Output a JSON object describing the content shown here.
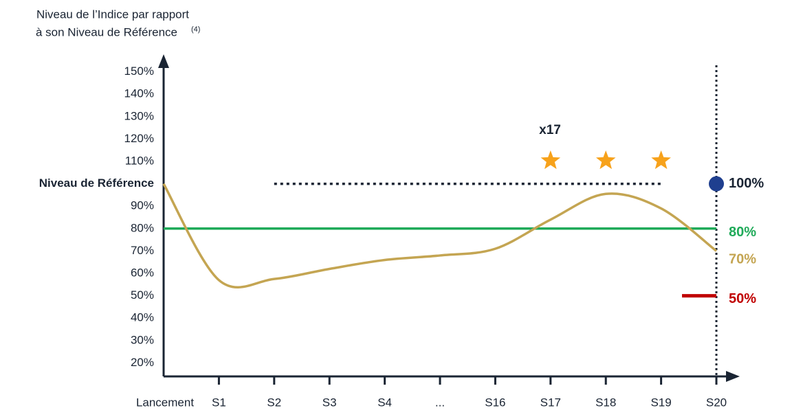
{
  "chart_data": {
    "type": "line",
    "y_label": [
      "Niveau de l’Indice par rapport",
      "à son Niveau de Référence"
    ],
    "y_label_note": "(4)",
    "categories": [
      "Lancement",
      "S1",
      "S2",
      "S3",
      "S4",
      "...",
      "S16",
      "S17",
      "S18",
      "S19",
      "S20"
    ],
    "series": [
      {
        "color": "#c4a552",
        "values": [
          100,
          57,
          57.5,
          62,
          66,
          68,
          71,
          84,
          95.5,
          89,
          70
        ]
      }
    ],
    "ylim": [
      14,
      156
    ],
    "yticks": [
      {
        "value": 20,
        "label": "20%"
      },
      {
        "value": 30,
        "label": "30%"
      },
      {
        "value": 40,
        "label": "40%"
      },
      {
        "value": 50,
        "label": "50%"
      },
      {
        "value": 60,
        "label": "60%"
      },
      {
        "value": 70,
        "label": "70%"
      },
      {
        "value": 80,
        "label": "80%"
      },
      {
        "value": 90,
        "label": "90%"
      },
      {
        "value": 100,
        "label": "Niveau de Référence"
      },
      {
        "value": 110,
        "label": "110%"
      },
      {
        "value": 120,
        "label": "120%"
      },
      {
        "value": 130,
        "label": "130%"
      },
      {
        "value": 140,
        "label": "140%"
      },
      {
        "value": 150,
        "label": "150%"
      }
    ],
    "annotation": "x17",
    "levels": [
      {
        "value": 100,
        "label": "100%",
        "color": "#1f3f8f"
      },
      {
        "value": 80,
        "label": "80%",
        "color": "#1faa59"
      },
      {
        "value": 70,
        "label": "70%",
        "color": "#c4a552"
      },
      {
        "value": 50,
        "label": "50%",
        "color": "#c00000"
      }
    ]
  }
}
